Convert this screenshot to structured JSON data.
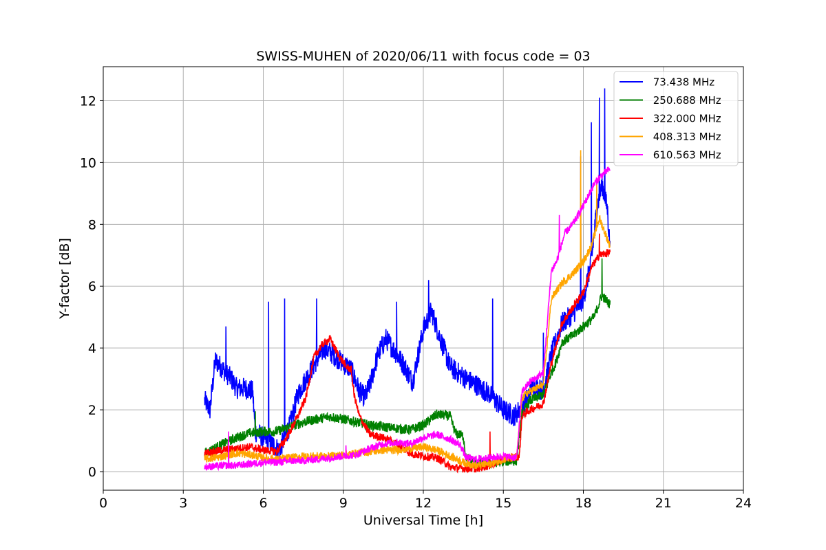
{
  "chart_data": {
    "type": "line",
    "title": "SWISS-MUHEN of 2020/06/11 with focus code = 03",
    "xlabel": "Universal Time [h]",
    "ylabel": "Y-factor [dB]",
    "xlim": [
      0,
      24
    ],
    "ylim": [
      -0.6,
      13.1
    ],
    "xticks": [
      0,
      3,
      6,
      9,
      12,
      15,
      18,
      21,
      24
    ],
    "yticks": [
      0,
      2,
      4,
      6,
      8,
      10,
      12
    ],
    "grid": true,
    "legend_position": "top-right",
    "series": [
      {
        "name": " 73.438 MHz",
        "color": "#0000ff",
        "noise": 0.35,
        "points": [
          [
            3.8,
            2.3
          ],
          [
            4.0,
            2.0
          ],
          [
            4.2,
            3.6
          ],
          [
            4.5,
            3.3
          ],
          [
            4.8,
            3.0
          ],
          [
            5.0,
            2.7
          ],
          [
            5.3,
            2.7
          ],
          [
            5.6,
            2.6
          ],
          [
            5.7,
            1.3
          ],
          [
            6.0,
            1.1
          ],
          [
            6.3,
            0.9
          ],
          [
            6.6,
            0.7
          ],
          [
            6.8,
            1.1
          ],
          [
            7.0,
            1.5
          ],
          [
            7.3,
            2.5
          ],
          [
            7.6,
            3.0
          ],
          [
            8.0,
            3.6
          ],
          [
            8.3,
            4.0
          ],
          [
            8.6,
            3.8
          ],
          [
            9.0,
            3.5
          ],
          [
            9.3,
            3.3
          ],
          [
            9.6,
            2.6
          ],
          [
            9.8,
            2.4
          ],
          [
            10.0,
            2.8
          ],
          [
            10.3,
            3.8
          ],
          [
            10.6,
            4.3
          ],
          [
            11.0,
            3.8
          ],
          [
            11.3,
            3.4
          ],
          [
            11.6,
            2.9
          ],
          [
            12.0,
            4.6
          ],
          [
            12.3,
            5.2
          ],
          [
            12.6,
            4.4
          ],
          [
            13.0,
            3.4
          ],
          [
            13.3,
            3.2
          ],
          [
            13.6,
            3.0
          ],
          [
            14.0,
            2.8
          ],
          [
            14.5,
            2.5
          ],
          [
            15.0,
            2.0
          ],
          [
            15.4,
            1.8
          ],
          [
            15.6,
            2.0
          ],
          [
            15.8,
            2.2
          ],
          [
            16.1,
            2.8
          ],
          [
            16.5,
            2.6
          ],
          [
            16.8,
            3.8
          ],
          [
            17.2,
            4.8
          ],
          [
            17.6,
            5.1
          ],
          [
            18.0,
            5.6
          ],
          [
            18.3,
            6.8
          ],
          [
            18.5,
            8.5
          ],
          [
            18.7,
            9.3
          ],
          [
            18.9,
            8.5
          ],
          [
            19.0,
            7.2
          ]
        ],
        "spikes": [
          [
            4.6,
            4.7
          ],
          [
            6.2,
            5.5
          ],
          [
            6.8,
            5.6
          ],
          [
            8.0,
            5.6
          ],
          [
            11.0,
            5.5
          ],
          [
            12.2,
            6.2
          ],
          [
            14.6,
            5.6
          ],
          [
            16.5,
            4.5
          ],
          [
            17.9,
            10.2
          ],
          [
            18.3,
            11.3
          ],
          [
            18.6,
            12.1
          ],
          [
            18.8,
            12.4
          ]
        ]
      },
      {
        "name": " 250.688 MHz",
        "color": "#008000",
        "noise": 0.16,
        "points": [
          [
            3.8,
            0.6
          ],
          [
            4.5,
            0.9
          ],
          [
            5.0,
            1.1
          ],
          [
            5.5,
            1.25
          ],
          [
            6.0,
            1.3
          ],
          [
            6.5,
            1.3
          ],
          [
            7.0,
            1.45
          ],
          [
            7.5,
            1.6
          ],
          [
            8.0,
            1.7
          ],
          [
            8.5,
            1.78
          ],
          [
            9.0,
            1.7
          ],
          [
            9.5,
            1.6
          ],
          [
            10.0,
            1.5
          ],
          [
            10.5,
            1.45
          ],
          [
            11.0,
            1.4
          ],
          [
            11.5,
            1.35
          ],
          [
            12.0,
            1.5
          ],
          [
            12.5,
            1.85
          ],
          [
            13.0,
            1.8
          ],
          [
            13.2,
            1.25
          ],
          [
            13.5,
            1.15
          ],
          [
            13.6,
            0.45
          ],
          [
            14.0,
            0.3
          ],
          [
            14.5,
            0.28
          ],
          [
            15.0,
            0.33
          ],
          [
            15.5,
            0.35
          ],
          [
            15.7,
            1.85
          ],
          [
            16.0,
            2.3
          ],
          [
            16.5,
            2.5
          ],
          [
            16.8,
            3.2
          ],
          [
            17.0,
            3.6
          ],
          [
            17.2,
            4.2
          ],
          [
            17.6,
            4.4
          ],
          [
            18.0,
            4.7
          ],
          [
            18.4,
            5.0
          ],
          [
            18.7,
            5.7
          ],
          [
            19.0,
            5.4
          ]
        ],
        "spikes": [
          [
            5.7,
            1.95
          ],
          [
            18.7,
            6.9
          ]
        ]
      },
      {
        "name": " 322.000 MHz",
        "color": "#ff0000",
        "noise": 0.13,
        "points": [
          [
            3.8,
            0.6
          ],
          [
            4.5,
            0.7
          ],
          [
            5.0,
            0.75
          ],
          [
            5.5,
            0.8
          ],
          [
            6.0,
            0.7
          ],
          [
            6.5,
            0.65
          ],
          [
            6.8,
            1.0
          ],
          [
            7.0,
            1.3
          ],
          [
            7.3,
            1.8
          ],
          [
            7.6,
            2.4
          ],
          [
            7.9,
            3.7
          ],
          [
            8.2,
            4.1
          ],
          [
            8.5,
            4.3
          ],
          [
            8.8,
            3.8
          ],
          [
            9.1,
            3.4
          ],
          [
            9.3,
            3.3
          ],
          [
            9.4,
            2.5
          ],
          [
            9.6,
            1.8
          ],
          [
            9.8,
            1.5
          ],
          [
            10.0,
            1.2
          ],
          [
            10.5,
            1.1
          ],
          [
            11.0,
            0.9
          ],
          [
            11.5,
            0.6
          ],
          [
            12.0,
            0.5
          ],
          [
            12.5,
            0.45
          ],
          [
            12.8,
            0.3
          ],
          [
            13.0,
            0.15
          ],
          [
            13.5,
            0.1
          ],
          [
            14.0,
            0.1
          ],
          [
            14.5,
            0.2
          ],
          [
            15.0,
            0.4
          ],
          [
            15.6,
            0.5
          ],
          [
            15.7,
            1.8
          ],
          [
            16.0,
            2.0
          ],
          [
            16.5,
            2.2
          ],
          [
            16.8,
            3.5
          ],
          [
            17.2,
            4.8
          ],
          [
            17.6,
            5.3
          ],
          [
            18.0,
            5.8
          ],
          [
            18.3,
            6.6
          ],
          [
            18.6,
            7.0
          ],
          [
            19.0,
            7.1
          ]
        ],
        "spikes": [
          [
            14.5,
            1.3
          ],
          [
            18.6,
            7.7
          ]
        ]
      },
      {
        "name": " 408.313 MHz",
        "color": "#ffa500",
        "noise": 0.13,
        "points": [
          [
            3.8,
            0.4
          ],
          [
            4.5,
            0.5
          ],
          [
            5.0,
            0.6
          ],
          [
            5.5,
            0.55
          ],
          [
            6.0,
            0.45
          ],
          [
            6.5,
            0.4
          ],
          [
            7.0,
            0.45
          ],
          [
            7.5,
            0.5
          ],
          [
            8.0,
            0.5
          ],
          [
            8.5,
            0.5
          ],
          [
            9.0,
            0.55
          ],
          [
            9.5,
            0.6
          ],
          [
            10.0,
            0.65
          ],
          [
            10.5,
            0.7
          ],
          [
            11.0,
            0.7
          ],
          [
            11.5,
            0.75
          ],
          [
            12.0,
            0.8
          ],
          [
            12.5,
            0.7
          ],
          [
            13.0,
            0.5
          ],
          [
            13.5,
            0.3
          ],
          [
            14.0,
            0.2
          ],
          [
            14.5,
            0.25
          ],
          [
            15.0,
            0.4
          ],
          [
            15.5,
            0.45
          ],
          [
            15.7,
            2.4
          ],
          [
            16.0,
            2.6
          ],
          [
            16.5,
            2.8
          ],
          [
            16.8,
            5.6
          ],
          [
            17.2,
            6.1
          ],
          [
            17.6,
            6.4
          ],
          [
            18.0,
            6.8
          ],
          [
            18.3,
            7.3
          ],
          [
            18.6,
            8.2
          ],
          [
            19.0,
            7.3
          ]
        ],
        "spikes": [
          [
            17.9,
            10.4
          ],
          [
            18.5,
            9.3
          ]
        ]
      },
      {
        "name": " 610.563 MHz",
        "color": "#ff00ff",
        "noise": 0.12,
        "points": [
          [
            3.8,
            0.15
          ],
          [
            4.5,
            0.2
          ],
          [
            5.0,
            0.2
          ],
          [
            5.5,
            0.25
          ],
          [
            6.0,
            0.3
          ],
          [
            6.5,
            0.3
          ],
          [
            7.0,
            0.35
          ],
          [
            7.5,
            0.35
          ],
          [
            8.0,
            0.4
          ],
          [
            8.5,
            0.45
          ],
          [
            9.0,
            0.5
          ],
          [
            9.5,
            0.55
          ],
          [
            10.0,
            0.75
          ],
          [
            10.5,
            0.9
          ],
          [
            11.0,
            0.95
          ],
          [
            11.5,
            0.9
          ],
          [
            12.0,
            1.1
          ],
          [
            12.5,
            1.2
          ],
          [
            13.0,
            1.05
          ],
          [
            13.4,
            0.85
          ],
          [
            13.6,
            0.45
          ],
          [
            14.0,
            0.4
          ],
          [
            14.5,
            0.45
          ],
          [
            15.0,
            0.5
          ],
          [
            15.5,
            0.45
          ],
          [
            15.7,
            2.6
          ],
          [
            16.0,
            2.9
          ],
          [
            16.5,
            3.2
          ],
          [
            16.8,
            6.5
          ],
          [
            17.0,
            6.8
          ],
          [
            17.3,
            7.7
          ],
          [
            17.6,
            8.0
          ],
          [
            18.0,
            8.6
          ],
          [
            18.4,
            9.3
          ],
          [
            18.7,
            9.6
          ],
          [
            19.0,
            9.8
          ]
        ],
        "spikes": [
          [
            4.7,
            1.3
          ],
          [
            9.1,
            0.85
          ],
          [
            17.1,
            8.3
          ]
        ]
      }
    ]
  }
}
